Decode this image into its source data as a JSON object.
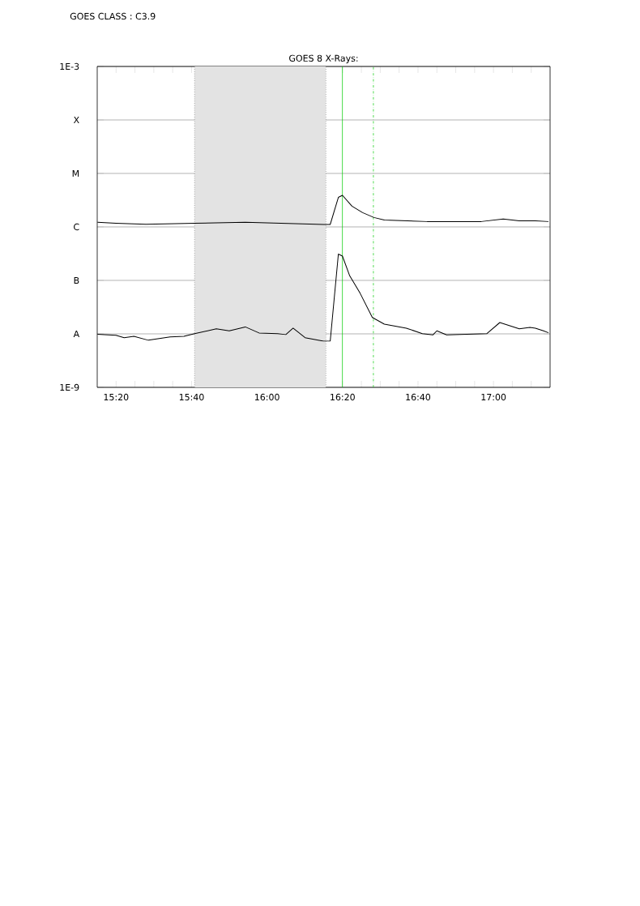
{
  "chart_data": {
    "type": "line",
    "title": "GOES 8 X-Rays:",
    "annotations": [
      "GOES CLASS : C3.9"
    ],
    "x": [
      15.251,
      15.333,
      15.465,
      15.68,
      15.904,
      16.25,
      16.279,
      16.315,
      16.333,
      16.375,
      16.422,
      16.472,
      16.518,
      16.707,
      16.946,
      17.043,
      17.114,
      17.185,
      17.243
    ],
    "series": [
      {
        "color": "#000000",
        "values": [
          1.22e-06,
          1.17e-06,
          1.12e-06,
          1.17e-06,
          1.22e-06,
          1.11e-06,
          1.11e-06,
          3.57e-06,
          3.9e-06,
          2.44e-06,
          1.85e-06,
          1.5e-06,
          1.35e-06,
          1.26e-06,
          1.26e-06,
          1.4e-06,
          1.3e-06,
          1.3e-06,
          1.26e-06
        ]
      },
      {
        "color": "#000000",
        "x": [
          15.251,
          15.333,
          15.369,
          15.412,
          15.476,
          15.572,
          15.633,
          15.68,
          15.776,
          15.833,
          15.904,
          15.965,
          16.047,
          16.083,
          16.115,
          16.168,
          16.25,
          16.279,
          16.315,
          16.333,
          16.365,
          16.411,
          16.465,
          16.518,
          16.615,
          16.686,
          16.733,
          16.75,
          16.793,
          16.971,
          17.028,
          17.114,
          17.161,
          17.185,
          17.221,
          17.243
        ],
        "values": [
          9.8e-09,
          9.4e-09,
          8.5e-09,
          9e-09,
          7.6e-09,
          8.8e-09,
          9e-09,
          1.01e-08,
          1.24e-08,
          1.14e-08,
          1.35e-08,
          1.04e-08,
          1.01e-08,
          9.7e-09,
          1.28e-08,
          8.5e-09,
          7.3e-09,
          7.3e-09,
          3.1e-07,
          2.85e-07,
          1.22e-07,
          5.75e-08,
          2.03e-08,
          1.52e-08,
          1.28e-08,
          1.01e-08,
          9.6e-09,
          1.14e-08,
          9.6e-09,
          1.01e-08,
          1.63e-08,
          1.24e-08,
          1.32e-08,
          1.28e-08,
          1.14e-08,
          1.05e-08
        ]
      }
    ],
    "xlim": [
      15.25,
      17.25
    ],
    "xticks": [
      {
        "value": 15.3333,
        "label": "15:20"
      },
      {
        "value": 15.4167,
        "label": null
      },
      {
        "value": 15.5,
        "label": null
      },
      {
        "value": 15.5833,
        "label": null
      },
      {
        "value": 15.6667,
        "label": "15:40"
      },
      {
        "value": 15.75,
        "label": null
      },
      {
        "value": 15.8333,
        "label": null
      },
      {
        "value": 15.9167,
        "label": null
      },
      {
        "value": 16.0,
        "label": "16:00"
      },
      {
        "value": 16.0833,
        "label": null
      },
      {
        "value": 16.1667,
        "label": null
      },
      {
        "value": 16.25,
        "label": null
      },
      {
        "value": 16.3333,
        "label": "16:20"
      },
      {
        "value": 16.4167,
        "label": null
      },
      {
        "value": 16.5,
        "label": null
      },
      {
        "value": 16.5833,
        "label": null
      },
      {
        "value": 16.6667,
        "label": "16:40"
      },
      {
        "value": 16.75,
        "label": null
      },
      {
        "value": 16.8333,
        "label": null
      },
      {
        "value": 16.9167,
        "label": null
      },
      {
        "value": 17.0,
        "label": "17:00"
      },
      {
        "value": 17.0833,
        "label": null
      },
      {
        "value": 17.1667,
        "label": null
      }
    ],
    "ylim": [
      1e-09,
      0.001
    ],
    "yticks": [
      {
        "value": 1e-09,
        "label": "1E-9"
      },
      {
        "value": 1e-08,
        "label": "A"
      },
      {
        "value": 1e-07,
        "label": "B"
      },
      {
        "value": 1e-06,
        "label": "C"
      },
      {
        "value": 1e-05,
        "label": "M"
      },
      {
        "value": 0.0001,
        "label": "X"
      },
      {
        "value": 0.001,
        "label": "1E-3"
      }
    ],
    "log": true,
    "grid": "y",
    "marker": "none",
    "line_style": "solid",
    "bands": [
      {
        "axis": "x",
        "from": 15.68,
        "to": 16.26,
        "color": "#e3e3e3"
      }
    ],
    "ref_lines": [
      {
        "axis": "x",
        "value": 15.68,
        "color": "#808080",
        "line_style": "dotted"
      },
      {
        "axis": "x",
        "value": 16.26,
        "color": "#808080",
        "line_style": "dotted"
      },
      {
        "axis": "x",
        "value": 16.333,
        "color": "#00cc00",
        "line_style": "solid"
      },
      {
        "axis": "x",
        "value": 16.47,
        "color": "#00cc00",
        "line_style": "dashed"
      }
    ]
  }
}
